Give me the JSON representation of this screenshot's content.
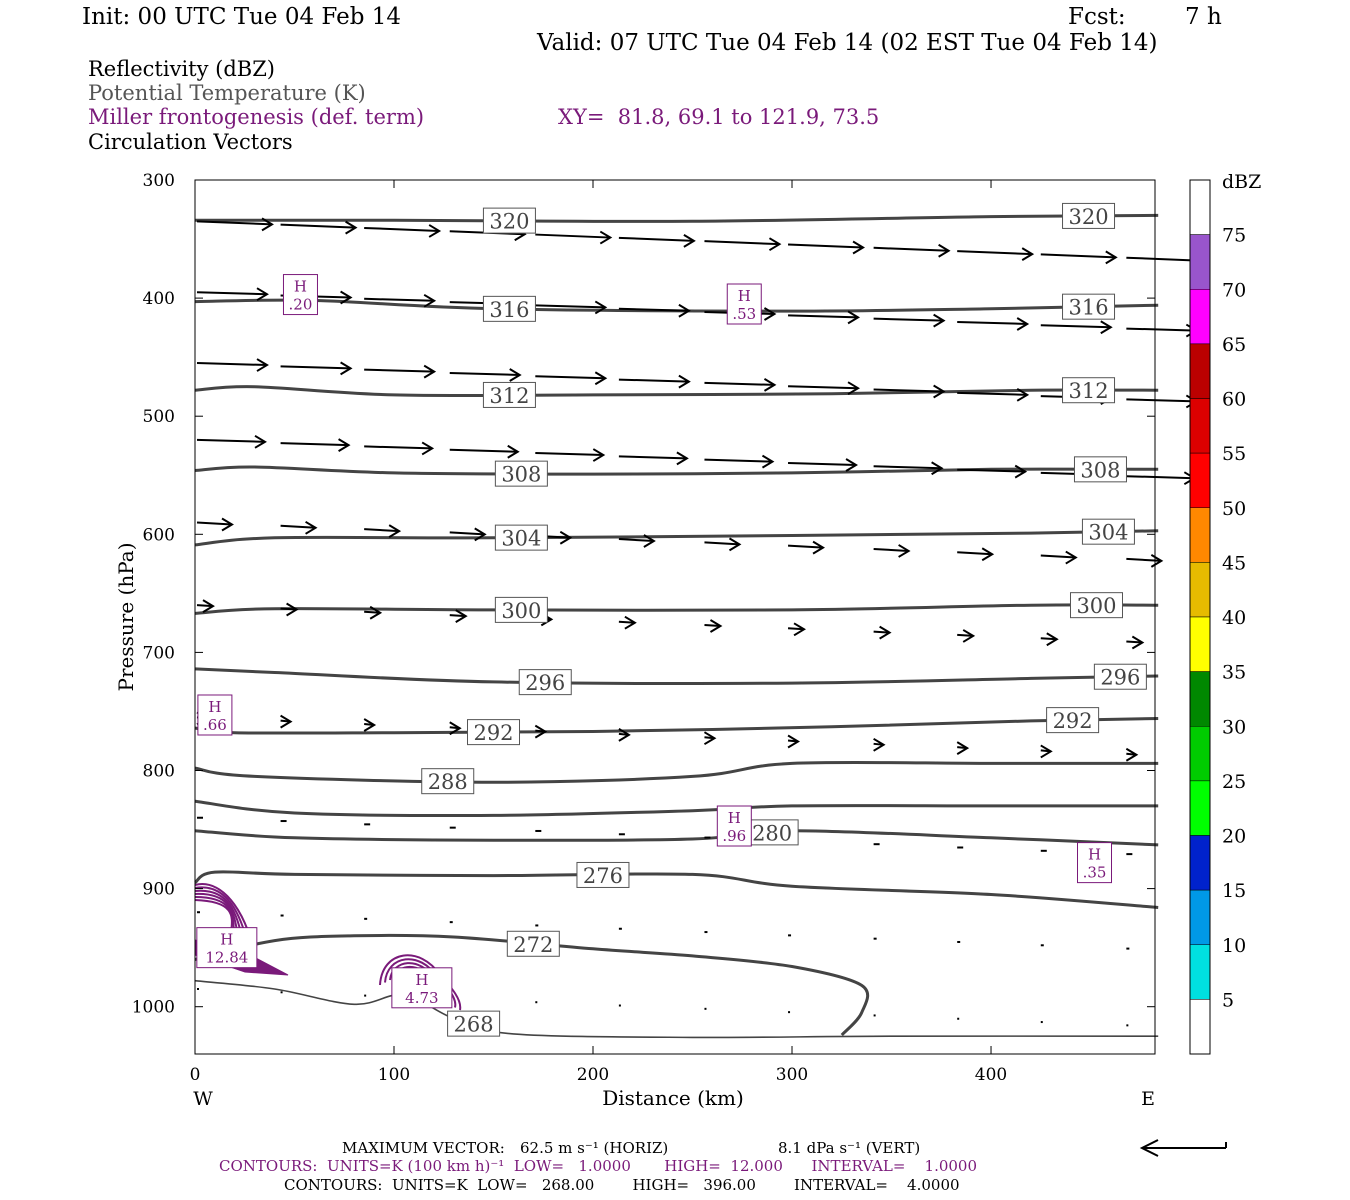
{
  "header": {
    "init": "Init: 00 UTC Tue 04 Feb 14",
    "fcst_label": "Fcst:",
    "fcst_value": "7 h",
    "valid": "Valid: 07 UTC Tue 04 Feb 14 (02 EST Tue 04 Feb 14)"
  },
  "legend": {
    "reflectivity": "Reflectivity (dBZ)",
    "theta": "Potential Temperature (K)",
    "frontogenesis": "Miller frontogenesis (def. term)",
    "xy": "XY=  81.8, 69.1 to 121.9, 73.5",
    "vectors": "Circulation Vectors"
  },
  "colors": {
    "theta_contour": "#444444",
    "fronto_contour": "#7a1a7a",
    "vector": "#000000"
  },
  "footer": {
    "max_vector_label": "MAXIMUM VECTOR:",
    "max_vector_horiz": "62.5 m s⁻¹ (HORIZ)",
    "max_vector_vert": "8.1 dPa s⁻¹ (VERT)",
    "fronto_contours": "CONTOURS:  UNITS=K (100 km h)⁻¹  LOW=   1.0000       HIGH=  12.000      INTERVAL=    1.0000",
    "theta_contours": "CONTOURS:  UNITS=K  LOW=   268.00        HIGH=   396.00        INTERVAL=    4.0000"
  },
  "chart_data": {
    "type": "cross-section",
    "xlabel": "Distance (km)",
    "ylabel": "Pressure (hPa)",
    "xlim": [
      0,
      484
    ],
    "ylim": [
      1040,
      300
    ],
    "x_ticks": [
      0,
      100,
      200,
      300,
      400
    ],
    "y_ticks": [
      300,
      400,
      500,
      600,
      700,
      800,
      900,
      1000
    ],
    "x_left_label": "W",
    "x_right_label": "E",
    "colorbar": {
      "unit_label": "dBZ",
      "levels": [
        5,
        10,
        15,
        20,
        25,
        30,
        35,
        40,
        45,
        50,
        55,
        60,
        65,
        70,
        75
      ],
      "colors": [
        "#ffffff",
        "#00e0e0",
        "#0099e6",
        "#0022cc",
        "#00ff00",
        "#00cc00",
        "#008800",
        "#ffff00",
        "#e6bb00",
        "#ff8800",
        "#ff0000",
        "#dd0000",
        "#bb0000",
        "#ff00ff",
        "#9955cc",
        "#ffffff"
      ]
    },
    "theta_contours": [
      {
        "value": 320,
        "label": "320",
        "labels_at": [
          158,
          449
        ],
        "points": [
          [
            0,
            334
          ],
          [
            100,
            334
          ],
          [
            250,
            335
          ],
          [
            400,
            331
          ],
          [
            484,
            330
          ]
        ]
      },
      {
        "value": 316,
        "label": "316",
        "labels_at": [
          158,
          449
        ],
        "points": [
          [
            0,
            403
          ],
          [
            60,
            402
          ],
          [
            150,
            409
          ],
          [
            300,
            411
          ],
          [
            400,
            409
          ],
          [
            484,
            406
          ]
        ]
      },
      {
        "value": 312,
        "label": "312",
        "labels_at": [
          158,
          449
        ],
        "points": [
          [
            0,
            478
          ],
          [
            30,
            475
          ],
          [
            100,
            482
          ],
          [
            200,
            482
          ],
          [
            320,
            481
          ],
          [
            420,
            478
          ],
          [
            484,
            478
          ]
        ]
      },
      {
        "value": 308,
        "label": "308",
        "labels_at": [
          164,
          455
        ],
        "points": [
          [
            0,
            546
          ],
          [
            30,
            543
          ],
          [
            100,
            548
          ],
          [
            200,
            549
          ],
          [
            300,
            548
          ],
          [
            400,
            545
          ],
          [
            484,
            545
          ]
        ]
      },
      {
        "value": 304,
        "label": "304",
        "labels_at": [
          164,
          459
        ],
        "points": [
          [
            0,
            609
          ],
          [
            40,
            603
          ],
          [
            150,
            603
          ],
          [
            300,
            601
          ],
          [
            420,
            599
          ],
          [
            484,
            597
          ]
        ]
      },
      {
        "value": 300,
        "label": "300",
        "labels_at": [
          164,
          453
        ],
        "points": [
          [
            0,
            667
          ],
          [
            40,
            663
          ],
          [
            150,
            664
          ],
          [
            300,
            664
          ],
          [
            420,
            660
          ],
          [
            484,
            660
          ]
        ]
      },
      {
        "value": 296,
        "label": "296",
        "labels_at": [
          176,
          465
        ],
        "points": [
          [
            0,
            714
          ],
          [
            40,
            717
          ],
          [
            150,
            725
          ],
          [
            300,
            726
          ],
          [
            420,
            722
          ],
          [
            484,
            720
          ]
        ]
      },
      {
        "value": 292,
        "label": "292",
        "labels_at": [
          150,
          441
        ],
        "points": [
          [
            0,
            764
          ],
          [
            20,
            768
          ],
          [
            100,
            768
          ],
          [
            200,
            767
          ],
          [
            320,
            763
          ],
          [
            420,
            758
          ],
          [
            484,
            756
          ]
        ]
      },
      {
        "value": 288,
        "label": "288",
        "labels_at": [
          127
        ],
        "points": [
          [
            0,
            798
          ],
          [
            30,
            805
          ],
          [
            150,
            810
          ],
          [
            250,
            805
          ],
          [
            300,
            794
          ],
          [
            400,
            794
          ],
          [
            484,
            794
          ]
        ]
      },
      {
        "value": 284,
        "label": "",
        "labels_at": [],
        "points": [
          [
            0,
            826
          ],
          [
            50,
            836
          ],
          [
            150,
            838
          ],
          [
            250,
            834
          ],
          [
            300,
            830
          ],
          [
            400,
            830
          ],
          [
            484,
            830
          ]
        ]
      },
      {
        "value": 280,
        "label": "280",
        "labels_at": [
          290
        ],
        "points": [
          [
            0,
            851
          ],
          [
            50,
            857
          ],
          [
            150,
            859
          ],
          [
            250,
            858
          ],
          [
            300,
            851
          ],
          [
            400,
            857
          ],
          [
            484,
            863
          ]
        ]
      },
      {
        "value": 276,
        "label": "276",
        "labels_at": [
          205
        ],
        "points": [
          [
            0,
            895
          ],
          [
            10,
            886
          ],
          [
            50,
            888
          ],
          [
            150,
            889
          ],
          [
            250,
            888
          ],
          [
            300,
            898
          ],
          [
            400,
            905
          ],
          [
            484,
            916
          ]
        ]
      },
      {
        "value": 272,
        "label": "272",
        "labels_at": [
          170
        ],
        "points": [
          [
            0,
            960
          ],
          [
            40,
            944
          ],
          [
            80,
            940
          ],
          [
            130,
            941
          ],
          [
            200,
            951
          ],
          [
            250,
            957
          ],
          [
            300,
            966
          ],
          [
            335,
            982
          ],
          [
            335,
            1005
          ],
          [
            325,
            1024
          ]
        ]
      },
      {
        "value": 268,
        "label": "268",
        "labels_at": [
          140
        ],
        "points": [
          [
            0,
            978
          ],
          [
            40,
            985
          ],
          [
            80,
            998
          ],
          [
            105,
            990
          ],
          [
            130,
            1010
          ],
          [
            160,
            1023
          ],
          [
            250,
            1026
          ],
          [
            350,
            1025
          ],
          [
            484,
            1025
          ]
        ]
      }
    ],
    "fronto_maxima": [
      {
        "label": "H",
        "value": ".20",
        "x": 53,
        "p": 397
      },
      {
        "label": "H",
        "value": ".53",
        "x": 276,
        "p": 405
      },
      {
        "label": "H",
        "value": ".66",
        "x": 10,
        "p": 753
      },
      {
        "label": "H",
        "value": ".96",
        "x": 271,
        "p": 847
      },
      {
        "label": "H",
        "value": ".35",
        "x": 452,
        "p": 878
      },
      {
        "label": "H",
        "value": "12.84",
        "x": 16,
        "p": 950
      },
      {
        "label": "H",
        "value": "4.73",
        "x": 114,
        "p": 984
      }
    ]
  }
}
